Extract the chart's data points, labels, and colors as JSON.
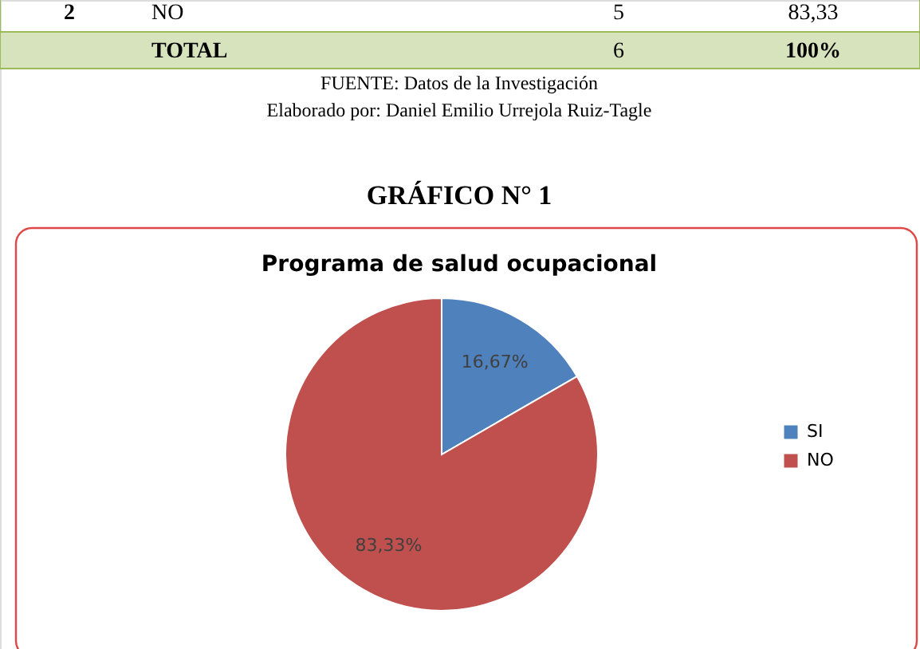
{
  "chart_data": {
    "type": "pie",
    "title": "Programa de salud ocupacional",
    "subtitle": "GRÁFICO N° 1",
    "categories": [
      "SI",
      "NO"
    ],
    "values": [
      16.67,
      83.33
    ],
    "colors": [
      "#4f81bd",
      "#c0504d"
    ],
    "value_labels": [
      "16,67%",
      "83,33%"
    ],
    "legend": "right",
    "annotations": [
      "2",
      "NO",
      "5",
      "83,33",
      "TOTAL",
      "6",
      "100%",
      "FUENTE: Datos de la Investigación",
      "Elaborado por: Daniel Emilio Urrejola Ruiz-Tagle"
    ]
  }
}
